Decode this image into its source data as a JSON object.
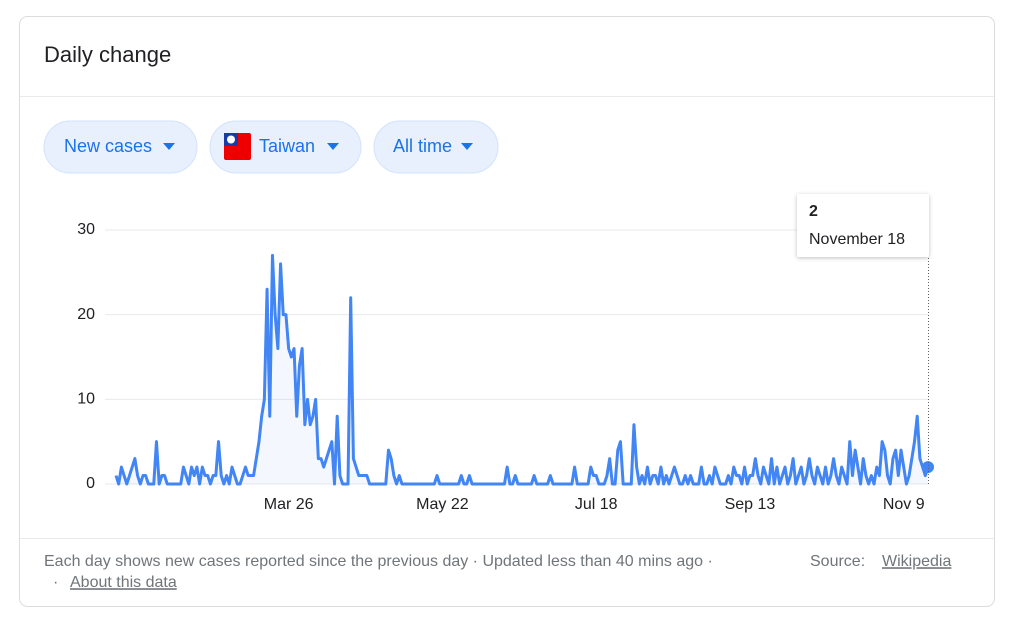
{
  "header": {
    "title": "Daily change"
  },
  "filters": [
    "New cases",
    "Taiwan",
    "All time"
  ],
  "chart_data": {
    "type": "line",
    "categories": [
      null,
      null,
      null,
      null,
      null,
      null,
      null,
      null,
      null,
      null,
      null,
      null,
      null,
      null,
      null,
      null,
      null,
      null,
      null,
      null,
      null,
      null,
      null,
      null,
      null,
      null,
      null,
      null,
      null,
      null,
      null,
      null,
      null,
      null,
      null,
      null,
      null,
      null,
      null,
      null,
      null,
      null,
      null,
      null,
      null,
      null,
      null,
      null,
      null,
      null,
      null,
      null,
      null,
      null,
      null,
      null,
      null,
      null,
      null,
      null,
      null,
      null,
      null,
      null,
      "Mar 26",
      null,
      null,
      null,
      null,
      null,
      null,
      null,
      null,
      null,
      null,
      null,
      null,
      null,
      null,
      null,
      null,
      null,
      null,
      null,
      null,
      null,
      null,
      null,
      null,
      null,
      null,
      null,
      null,
      null,
      null,
      null,
      null,
      null,
      null,
      null,
      null,
      null,
      null,
      null,
      null,
      null,
      null,
      null,
      null,
      null,
      null,
      null,
      null,
      null,
      null,
      null,
      null,
      null,
      null,
      null,
      null,
      "May 22",
      null,
      null,
      null,
      null,
      null,
      null,
      null,
      null,
      null,
      null,
      null,
      null,
      null,
      null,
      null,
      null,
      null,
      null,
      null,
      null,
      null,
      null,
      null,
      null,
      null,
      null,
      null,
      null,
      null,
      null,
      null,
      null,
      null,
      null,
      null,
      null,
      null,
      null,
      null,
      null,
      null,
      null,
      null,
      null,
      null,
      null,
      null,
      null,
      null,
      null,
      null,
      null,
      null,
      null,
      null,
      null,
      "Jul 18",
      null,
      null,
      null,
      null,
      null,
      null,
      null,
      null,
      null,
      null,
      null,
      null,
      null,
      null,
      null,
      null,
      null,
      null,
      null,
      null,
      null,
      null,
      null,
      null,
      null,
      null,
      null,
      null,
      null,
      null,
      null,
      null,
      null,
      null,
      null,
      null,
      null,
      null,
      null,
      null,
      null,
      null,
      null,
      null,
      null,
      null,
      null,
      null,
      null,
      null,
      null,
      null,
      null,
      null,
      null,
      null,
      "Sep 13",
      null,
      null,
      null,
      null,
      null,
      null,
      null,
      null,
      null,
      null,
      null,
      null,
      null,
      null,
      null,
      null,
      null,
      null,
      null,
      null,
      null,
      null,
      null,
      null,
      null,
      null,
      null,
      null,
      null,
      null,
      null,
      null,
      null,
      null,
      null,
      null,
      null,
      null,
      null,
      null,
      null,
      null,
      null,
      null,
      null,
      null,
      null,
      null,
      null,
      null,
      null,
      null,
      null,
      null,
      null,
      null,
      "Nov 9",
      null,
      null,
      null,
      null,
      null,
      null,
      null,
      null,
      null
    ],
    "series": [
      {
        "color": "#4285f4",
        "values": [
          1,
          0,
          2,
          1,
          0,
          1,
          2,
          3,
          1,
          0,
          1,
          1,
          0,
          0,
          0,
          5,
          0,
          1,
          1,
          0,
          0,
          0,
          0,
          0,
          0,
          2,
          1,
          0,
          2,
          1,
          2,
          0,
          2,
          1,
          1,
          0,
          1,
          1,
          5,
          1,
          0,
          1,
          0,
          2,
          1,
          0,
          0,
          1,
          2,
          1,
          1,
          1,
          3,
          5,
          8,
          10,
          23,
          8,
          27,
          20,
          16,
          26,
          20,
          20,
          16,
          15,
          16,
          8,
          14,
          16,
          7,
          10,
          7,
          8,
          10,
          3,
          3,
          2,
          3,
          4,
          5,
          0,
          8,
          1,
          0,
          0,
          0,
          22,
          3,
          2,
          1,
          1,
          1,
          1,
          0,
          0,
          0,
          0,
          0,
          0,
          0,
          4,
          3,
          1,
          0,
          1,
          0,
          0,
          0,
          0,
          0,
          0,
          0,
          0,
          0,
          0,
          0,
          0,
          0,
          1,
          0,
          0,
          0,
          0,
          0,
          0,
          0,
          0,
          1,
          0,
          0,
          1,
          0,
          0,
          0,
          0,
          0,
          0,
          0,
          0,
          0,
          0,
          0,
          0,
          0,
          2,
          0,
          0,
          1,
          0,
          0,
          0,
          0,
          0,
          0,
          1,
          0,
          0,
          0,
          0,
          0,
          1,
          0,
          0,
          0,
          0,
          0,
          0,
          0,
          0,
          2,
          0,
          0,
          0,
          0,
          0,
          2,
          1,
          1,
          0,
          0,
          0,
          1,
          3,
          0,
          0,
          4,
          5,
          0,
          0,
          0,
          0,
          7,
          2,
          0,
          1,
          0,
          2,
          0,
          1,
          1,
          0,
          2,
          0,
          1,
          0,
          1,
          2,
          1,
          0,
          0,
          1,
          0,
          1,
          0,
          0,
          0,
          2,
          0,
          0,
          1,
          0,
          2,
          1,
          0,
          0,
          0,
          1,
          0,
          2,
          1,
          1,
          0,
          2,
          0,
          1,
          1,
          3,
          1,
          0,
          2,
          1,
          0,
          3,
          0,
          2,
          0,
          1,
          2,
          0,
          1,
          3,
          0,
          1,
          2,
          0,
          1,
          3,
          1,
          0,
          2,
          1,
          0,
          2,
          0,
          1,
          3,
          1,
          0,
          2,
          1,
          0,
          5,
          1,
          4,
          2,
          0,
          3,
          1,
          0,
          1,
          0,
          2,
          1,
          5,
          4,
          1,
          0,
          3,
          4,
          1,
          4,
          2,
          0,
          1,
          3,
          5,
          8,
          3,
          2,
          1,
          2
        ]
      }
    ],
    "ylim": [
      0,
      30
    ],
    "yticks": [
      0,
      10,
      20,
      30
    ],
    "grid": true,
    "tooltip_date": "November 18"
  },
  "footer": {
    "note": "Each day shows new cases reported since the previous day · Updated less than 40 mins ago ·",
    "source_label": "Source:",
    "source_link": "Wikipedia",
    "separator": "·",
    "about_link": "About this data"
  }
}
